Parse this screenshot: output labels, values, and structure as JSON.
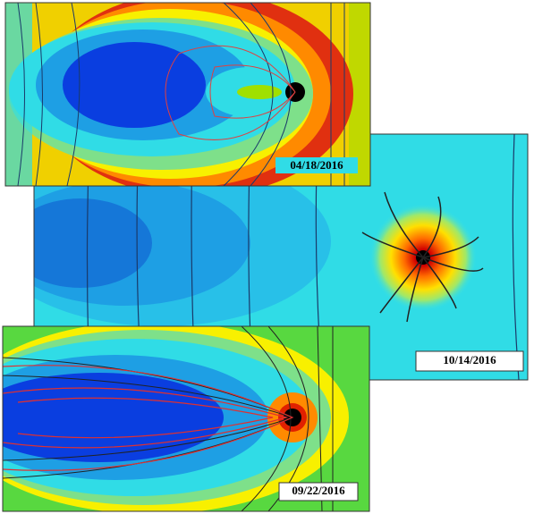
{
  "panels": [
    {
      "date": "04/18/2016"
    },
    {
      "date": "10/14/2016"
    },
    {
      "date": "09/22/2016"
    }
  ]
}
